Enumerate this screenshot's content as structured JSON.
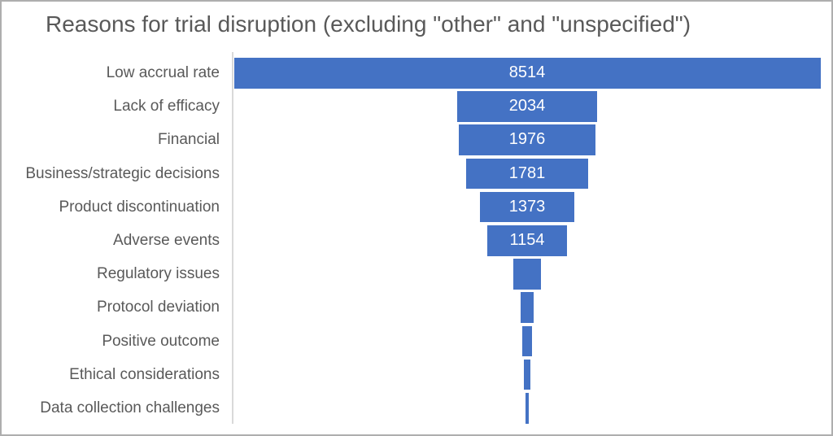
{
  "chart_data": {
    "type": "bar",
    "variant": "funnel (horizontal bars centered on a common vertical axis)",
    "title": "Reasons for trial disruption (excluding \"other\" and \"unspecified\")",
    "categories": [
      "Low accrual rate",
      "Lack of efficacy",
      "Financial",
      "Business/strategic decisions",
      "Product discontinuation",
      "Adverse events",
      "Regulatory issues",
      "Protocol deviation",
      "Positive outcome",
      "Ethical considerations",
      "Data collection challenges"
    ],
    "values": [
      8514,
      2034,
      1976,
      1781,
      1373,
      1154,
      410,
      185,
      135,
      100,
      40
    ],
    "value_labels": [
      "8514",
      "2034",
      "1976",
      "1781",
      "1373",
      "1154",
      "",
      "",
      "",
      "",
      ""
    ],
    "values_estimated_from_bar_width": [
      false,
      false,
      false,
      false,
      false,
      false,
      true,
      true,
      true,
      true,
      true
    ],
    "xlim": [
      0,
      8514
    ],
    "grid": false,
    "legend": false,
    "xlabel": "",
    "ylabel": "",
    "colors": {
      "bar_fill": "#4472c4",
      "bar_label_text": "#ffffff",
      "title_text": "#595959",
      "category_text": "#595959",
      "axis_line": "#d9d9d9",
      "background": "#ffffff",
      "frame_border": "#aeaeae"
    }
  }
}
